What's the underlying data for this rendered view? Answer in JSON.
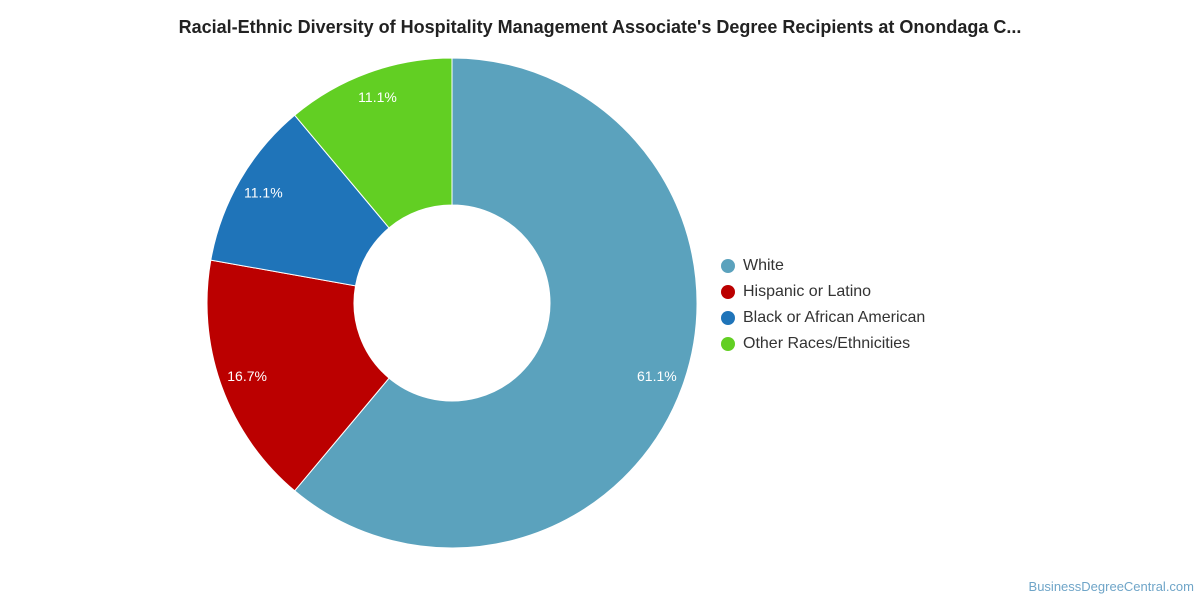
{
  "chart_data": {
    "type": "pie",
    "donut": true,
    "title": "Racial-Ethnic Diversity of Hospitality Management Associate's Degree Recipients at Onondaga C...",
    "slices": [
      {
        "label": "White",
        "value": 61.1,
        "value_label": "61.1%",
        "color": "#5ba2bd"
      },
      {
        "label": "Hispanic or Latino",
        "value": 16.7,
        "value_label": "16.7%",
        "color": "#bb0000"
      },
      {
        "label": "Black or African American",
        "value": 11.1,
        "value_label": "11.1%",
        "color": "#1f74b9"
      },
      {
        "label": "Other Races/Ethnicities",
        "value": 11.1,
        "value_label": "11.1%",
        "color": "#62cf23"
      }
    ],
    "legend_position": "right"
  },
  "source_text": "BusinessDegreeCentral.com"
}
